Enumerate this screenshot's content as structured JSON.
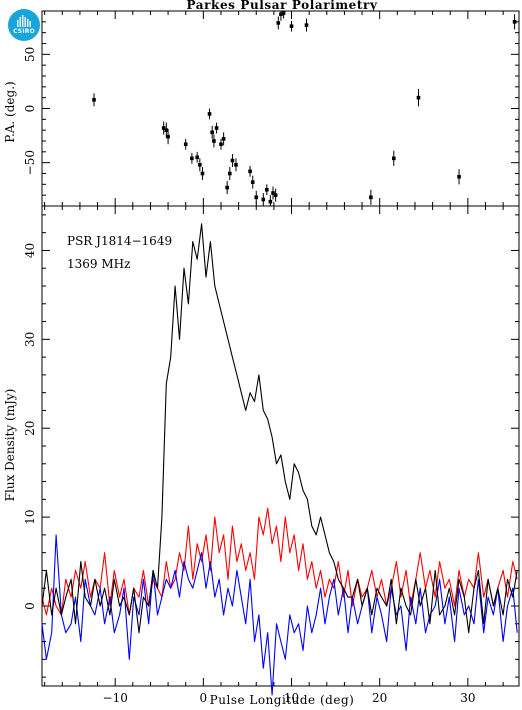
{
  "logo": {
    "text": "CSIRO"
  },
  "chart_data": {
    "type": "line",
    "title": "Parkes Pulsar Polarimetry",
    "xlabel": "Pulse Longitude (deg)",
    "xlim": [
      -18.3,
      35.8
    ],
    "xticks": [
      -10,
      0,
      10,
      20,
      30
    ],
    "annotations": [
      "PSR J1814−1649",
      "1369 MHz"
    ],
    "colors": {
      "I": "#000000",
      "L": "#ff0000",
      "V": "#0000ff"
    },
    "pa": {
      "ylabel": "P.A. (deg.)",
      "ylim": [
        -90,
        90
      ],
      "yticks": [
        -50,
        0,
        50
      ],
      "points": [
        {
          "x": -12.4,
          "y": 8,
          "err": 6
        },
        {
          "x": -4.5,
          "y": -18,
          "err": 6
        },
        {
          "x": -4.2,
          "y": -20,
          "err": 7
        },
        {
          "x": -4.0,
          "y": -26,
          "err": 7
        },
        {
          "x": -2.0,
          "y": -33,
          "err": 5
        },
        {
          "x": -1.3,
          "y": -46,
          "err": 5
        },
        {
          "x": -0.7,
          "y": -45,
          "err": 5
        },
        {
          "x": -0.4,
          "y": -52,
          "err": 6
        },
        {
          "x": -0.1,
          "y": -60,
          "err": 6
        },
        {
          "x": 0.7,
          "y": -5,
          "err": 5
        },
        {
          "x": 1.0,
          "y": -22,
          "err": 6
        },
        {
          "x": 1.2,
          "y": -30,
          "err": 6
        },
        {
          "x": 1.5,
          "y": -18,
          "err": 5
        },
        {
          "x": 2.0,
          "y": -33,
          "err": 5
        },
        {
          "x": 2.3,
          "y": -28,
          "err": 6
        },
        {
          "x": 2.7,
          "y": -73,
          "err": 6
        },
        {
          "x": 3.0,
          "y": -60,
          "err": 6
        },
        {
          "x": 3.3,
          "y": -48,
          "err": 6
        },
        {
          "x": 3.7,
          "y": -52,
          "err": 6
        },
        {
          "x": 5.3,
          "y": -58,
          "err": 5
        },
        {
          "x": 5.6,
          "y": -68,
          "err": 6
        },
        {
          "x": 6.0,
          "y": -82,
          "err": 6
        },
        {
          "x": 6.8,
          "y": -84,
          "err": 6
        },
        {
          "x": 7.2,
          "y": -75,
          "err": 5
        },
        {
          "x": 7.6,
          "y": -86,
          "err": 6
        },
        {
          "x": 7.9,
          "y": -78,
          "err": 6
        },
        {
          "x": 8.2,
          "y": -80,
          "err": 6
        },
        {
          "x": 8.5,
          "y": 79,
          "err": 6
        },
        {
          "x": 8.8,
          "y": 87,
          "err": 6
        },
        {
          "x": 9.1,
          "y": 88,
          "err": 5
        },
        {
          "x": 10.0,
          "y": 76,
          "err": 5
        },
        {
          "x": 11.7,
          "y": 77,
          "err": 6
        },
        {
          "x": 19.0,
          "y": -82,
          "err": 7
        },
        {
          "x": 21.6,
          "y": -46,
          "err": 7
        },
        {
          "x": 24.4,
          "y": 10,
          "err": 8
        },
        {
          "x": 29.0,
          "y": -63,
          "err": 7
        },
        {
          "x": 35.3,
          "y": 80,
          "err": 7
        }
      ]
    },
    "profile": {
      "ylabel": "Flux Density (mJy)",
      "ylim": [
        -9,
        45
      ],
      "yticks": [
        0,
        10,
        20,
        30,
        40
      ],
      "series": [
        {
          "key": "I",
          "x": [
            -18.3,
            -17.8,
            -17.2,
            -16.7,
            -16.1,
            -15.6,
            -15.0,
            -14.5,
            -13.9,
            -13.4,
            -12.8,
            -12.3,
            -11.7,
            -11.2,
            -10.6,
            -10.1,
            -9.5,
            -9.0,
            -8.4,
            -7.9,
            -7.3,
            -6.8,
            -6.2,
            -5.7,
            -5.2,
            -4.7,
            -4.2,
            -3.7,
            -3.2,
            -2.7,
            -2.2,
            -1.7,
            -1.2,
            -0.7,
            -0.2,
            0.3,
            0.8,
            1.3,
            1.8,
            2.3,
            2.8,
            3.3,
            3.8,
            4.3,
            4.8,
            5.3,
            5.8,
            6.3,
            6.8,
            7.3,
            7.8,
            8.3,
            8.8,
            9.3,
            9.8,
            10.3,
            10.8,
            11.3,
            11.8,
            12.3,
            12.8,
            13.3,
            13.8,
            14.3,
            14.8,
            15.3,
            15.9,
            16.4,
            16.9,
            17.5,
            18.0,
            18.6,
            19.1,
            19.7,
            20.2,
            20.8,
            21.3,
            21.9,
            22.4,
            23.0,
            23.5,
            24.1,
            24.6,
            25.2,
            25.7,
            26.3,
            26.8,
            27.4,
            27.9,
            28.5,
            29.0,
            29.6,
            30.1,
            30.7,
            31.2,
            31.8,
            32.3,
            32.9,
            33.4,
            34.0,
            34.5,
            35.1,
            35.6
          ],
          "y": [
            0,
            4,
            -1,
            2,
            -1,
            1,
            3,
            -2,
            5,
            1,
            0,
            3,
            0,
            2,
            -1,
            3,
            0,
            1,
            -1,
            2,
            -3,
            1,
            0,
            4,
            2,
            10,
            25,
            28,
            36,
            30,
            38,
            34,
            41,
            39,
            43,
            37,
            41,
            36,
            34,
            32,
            30,
            28,
            26,
            24,
            22,
            24,
            23,
            26,
            22,
            21,
            19,
            16,
            17,
            14,
            12,
            16,
            15,
            13,
            12,
            9,
            8,
            10,
            8,
            6,
            5,
            3,
            2,
            1,
            1,
            3,
            0,
            2,
            -1,
            2,
            1,
            0,
            3,
            -2,
            2,
            0,
            -1,
            3,
            0,
            2,
            -2,
            4,
            -1,
            0,
            2,
            -1,
            3,
            1,
            -3,
            2,
            4,
            -2,
            3,
            0,
            2,
            -1,
            3,
            1,
            4
          ]
        },
        {
          "key": "L",
          "x": [
            -18.3,
            -17.8,
            -17.2,
            -16.7,
            -16.1,
            -15.6,
            -15.0,
            -14.5,
            -13.9,
            -13.4,
            -12.8,
            -12.3,
            -11.7,
            -11.2,
            -10.6,
            -10.1,
            -9.5,
            -9.0,
            -8.4,
            -7.9,
            -7.3,
            -6.8,
            -6.2,
            -5.7,
            -5.2,
            -4.7,
            -4.2,
            -3.7,
            -3.2,
            -2.7,
            -2.2,
            -1.7,
            -1.2,
            -0.7,
            -0.2,
            0.3,
            0.8,
            1.3,
            1.8,
            2.3,
            2.8,
            3.3,
            3.8,
            4.3,
            4.8,
            5.3,
            5.8,
            6.3,
            6.8,
            7.3,
            7.8,
            8.3,
            8.8,
            9.3,
            9.8,
            10.3,
            10.8,
            11.3,
            11.8,
            12.3,
            12.8,
            13.3,
            13.8,
            14.3,
            14.8,
            15.3,
            15.9,
            16.4,
            16.9,
            17.5,
            18.0,
            18.6,
            19.1,
            19.7,
            20.2,
            20.8,
            21.3,
            21.9,
            22.4,
            23.0,
            23.5,
            24.1,
            24.6,
            25.2,
            25.7,
            26.3,
            26.8,
            27.4,
            27.9,
            28.5,
            29.0,
            29.6,
            30.1,
            30.7,
            31.2,
            31.8,
            32.3,
            32.9,
            33.4,
            34.0,
            34.5,
            35.1,
            35.6
          ],
          "y": [
            1,
            -1,
            2,
            0,
            -1,
            3,
            1,
            4,
            2,
            5,
            1,
            3,
            2,
            6,
            0,
            4,
            1,
            3,
            -1,
            2,
            1,
            4,
            0,
            3,
            2,
            1,
            5,
            2,
            3,
            6,
            4,
            9,
            3,
            7,
            5,
            8,
            4,
            10,
            6,
            8,
            3,
            9,
            5,
            7,
            4,
            6,
            3,
            10,
            8,
            11,
            7,
            9,
            5,
            10,
            6,
            8,
            4,
            7,
            3,
            5,
            2,
            4,
            1,
            3,
            2,
            5,
            1,
            4,
            0,
            3,
            1,
            2,
            4,
            1,
            3,
            0,
            2,
            5,
            1,
            4,
            0,
            3,
            6,
            2,
            4,
            1,
            5,
            2,
            3,
            0,
            4,
            1,
            3,
            2,
            6,
            1,
            3,
            0,
            2,
            4,
            1,
            5,
            3
          ]
        },
        {
          "key": "V",
          "x": [
            -18.3,
            -17.8,
            -17.2,
            -16.7,
            -16.1,
            -15.6,
            -15.0,
            -14.5,
            -13.9,
            -13.4,
            -12.8,
            -12.3,
            -11.7,
            -11.2,
            -10.6,
            -10.1,
            -9.5,
            -9.0,
            -8.4,
            -7.9,
            -7.3,
            -6.8,
            -6.2,
            -5.7,
            -5.2,
            -4.7,
            -4.2,
            -3.7,
            -3.2,
            -2.7,
            -2.2,
            -1.7,
            -1.2,
            -0.7,
            -0.2,
            0.3,
            0.8,
            1.3,
            1.8,
            2.3,
            2.8,
            3.3,
            3.8,
            4.3,
            4.8,
            5.3,
            5.8,
            6.3,
            6.8,
            7.3,
            7.8,
            8.3,
            8.8,
            9.3,
            9.8,
            10.3,
            10.8,
            11.3,
            11.8,
            12.3,
            12.8,
            13.3,
            13.8,
            14.3,
            14.8,
            15.3,
            15.9,
            16.4,
            16.9,
            17.5,
            18.0,
            18.6,
            19.1,
            19.7,
            20.2,
            20.8,
            21.3,
            21.9,
            22.4,
            23.0,
            23.5,
            24.1,
            24.6,
            25.2,
            25.7,
            26.3,
            26.8,
            27.4,
            27.9,
            28.5,
            29.0,
            29.6,
            30.1,
            30.7,
            31.2,
            31.8,
            32.3,
            32.9,
            33.4,
            34.0,
            34.5,
            35.1,
            35.6
          ],
          "y": [
            -2,
            -6,
            -3,
            8,
            -1,
            -3,
            -2,
            1,
            -4,
            3,
            0,
            -1,
            2,
            -2,
            1,
            -3,
            -1,
            2,
            -6,
            1,
            -1,
            3,
            -2,
            4,
            -1,
            1,
            3,
            2,
            4,
            1,
            5,
            3,
            2,
            4,
            6,
            2,
            5,
            1,
            3,
            -1,
            2,
            0,
            4,
            1,
            -2,
            3,
            -4,
            -1,
            -7,
            -3,
            -10,
            -2,
            -4,
            -6,
            -1,
            -3,
            -2,
            -5,
            0,
            -3,
            -1,
            2,
            -2,
            1,
            3,
            -1,
            2,
            -3,
            1,
            -2,
            0,
            2,
            -3,
            1,
            -1,
            -4,
            2,
            -1,
            0,
            -5,
            1,
            -2,
            2,
            -3,
            -1,
            0,
            3,
            -2,
            1,
            -4,
            2,
            -1,
            0,
            -2,
            3,
            -3,
            1,
            -1,
            2,
            -4,
            0,
            2,
            -3
          ]
        }
      ]
    }
  }
}
